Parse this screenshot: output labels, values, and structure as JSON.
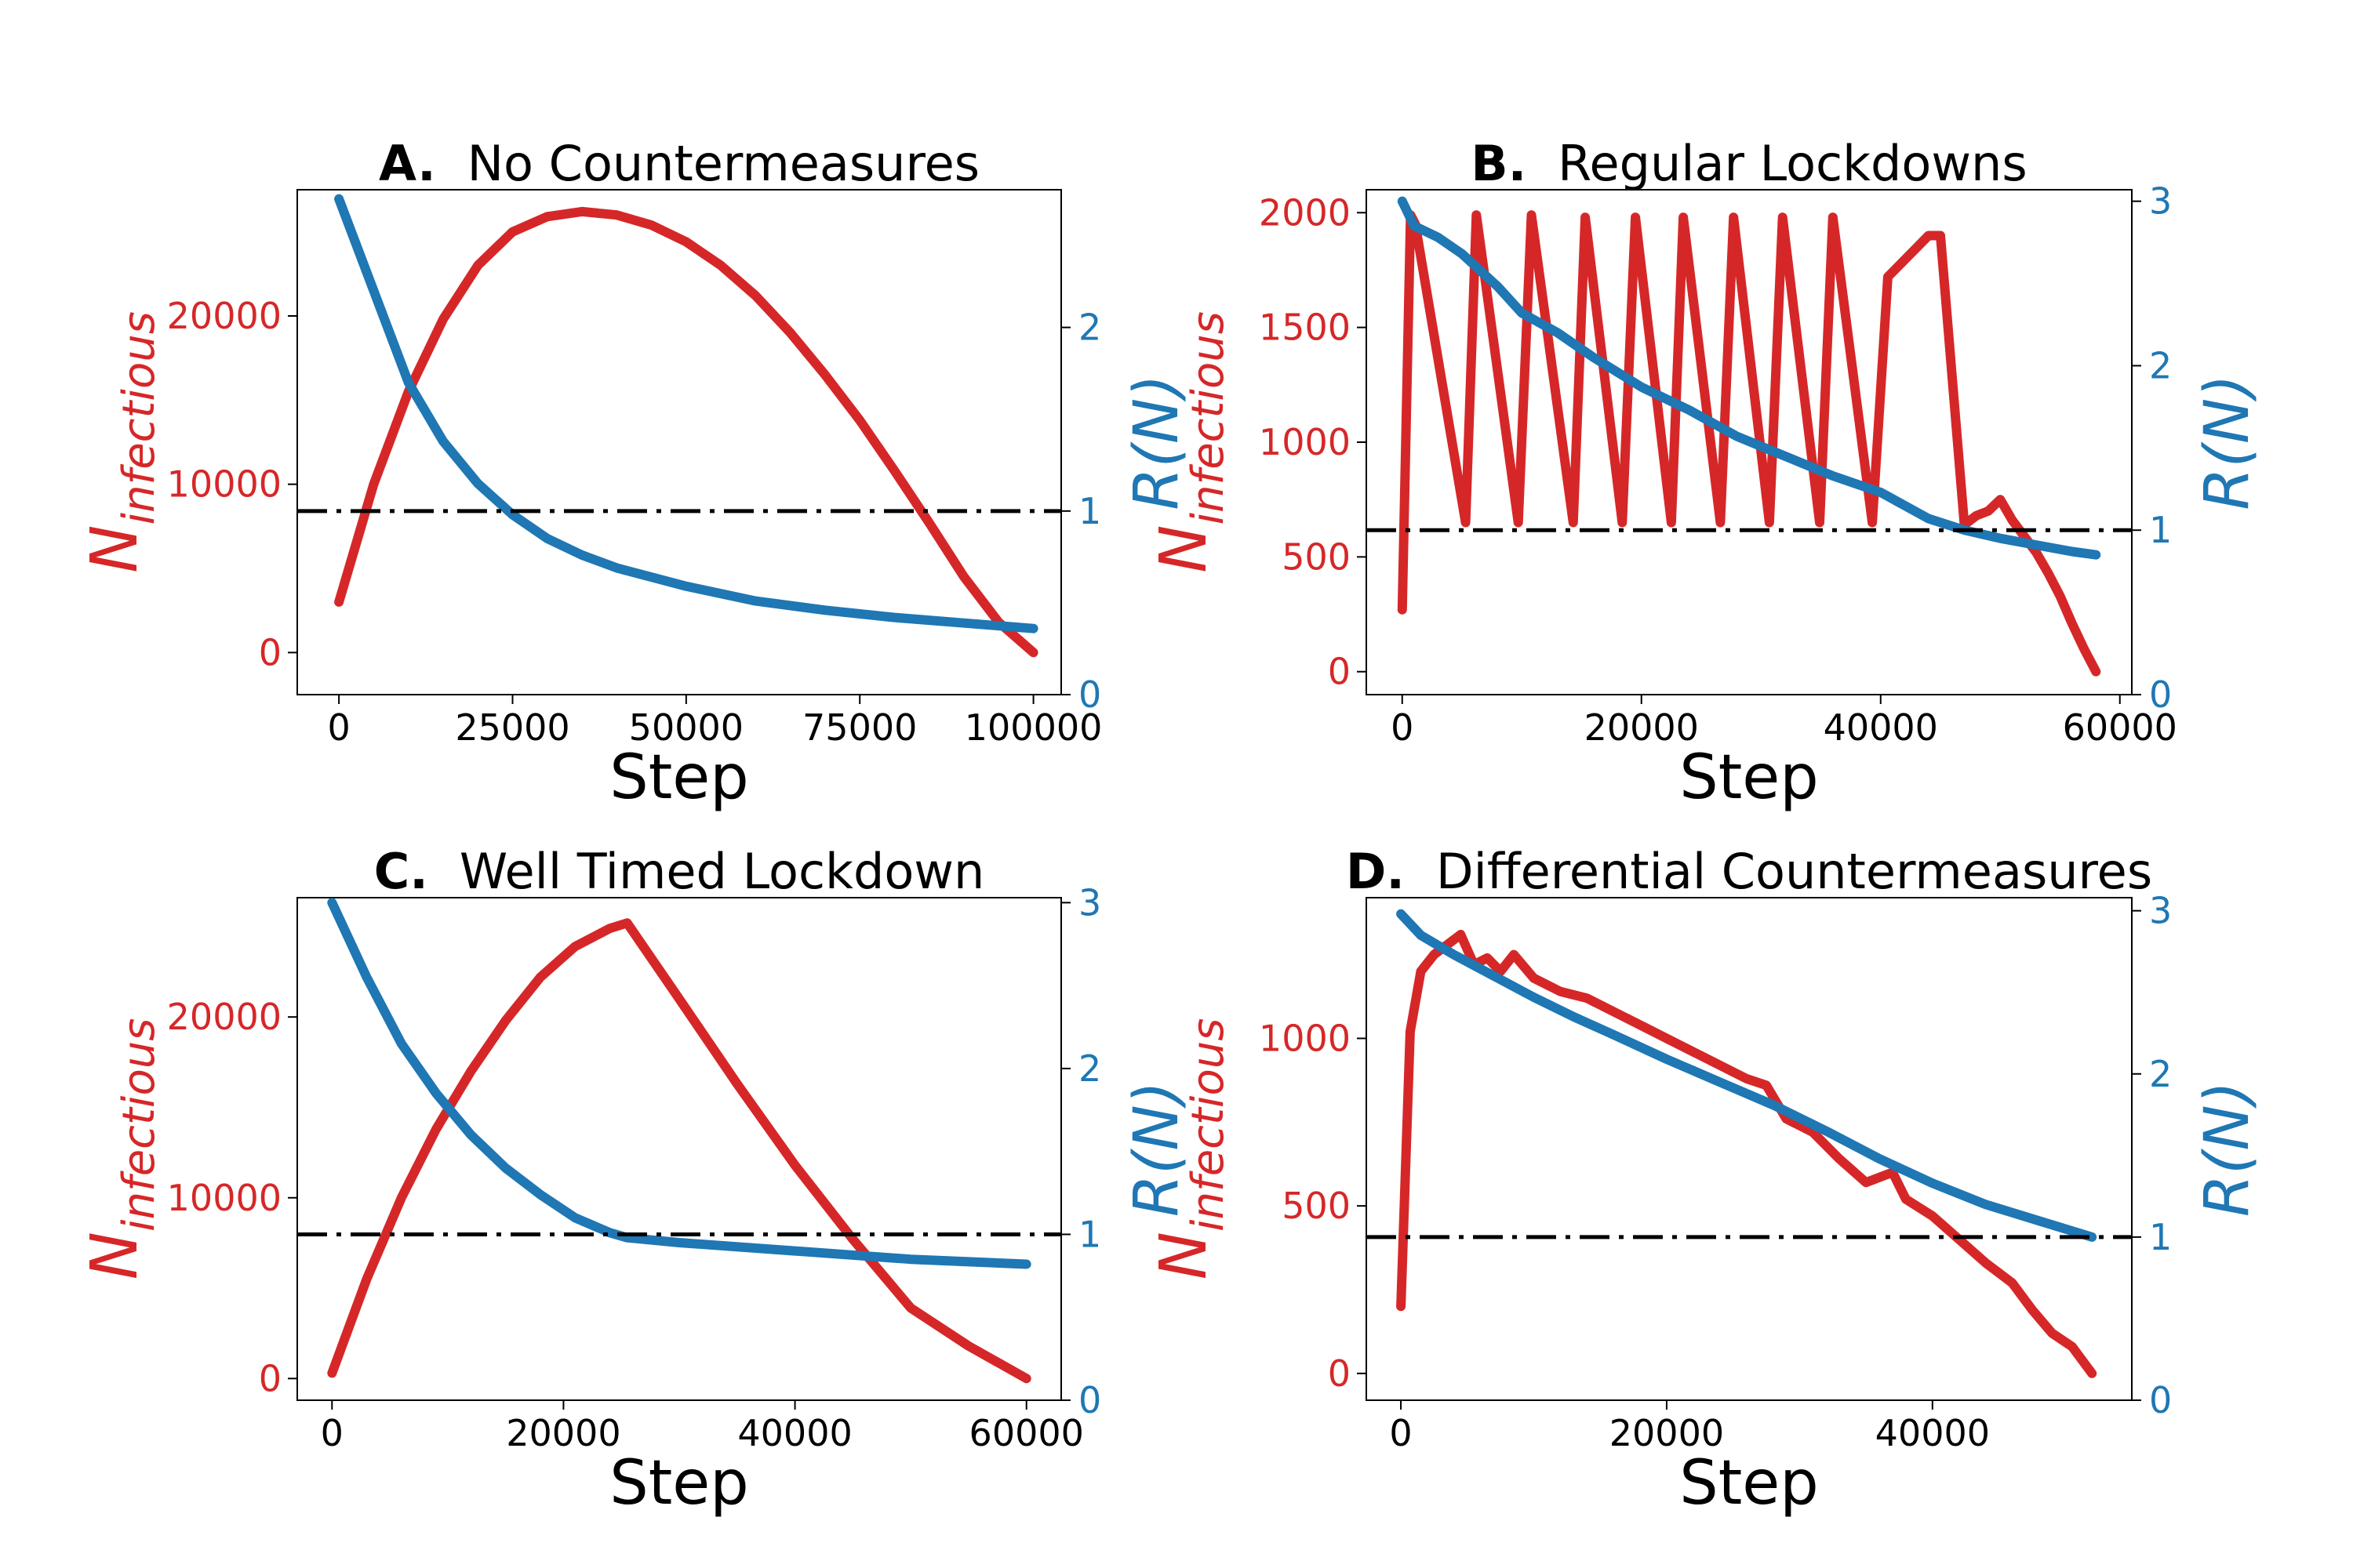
{
  "colors": {
    "infectious": "#d62728",
    "r": "#1f77b4",
    "threshold": "#000000",
    "axis": "#000000"
  },
  "chart_data": [
    {
      "type": "line",
      "panel": "A.",
      "title": "No Countermeasures",
      "xlabel": "Step",
      "ylabel_left": {
        "base": "N",
        "sub": "infectious"
      },
      "ylabel_right": "R(N)",
      "xlim": [
        -6000,
        104000
      ],
      "ylim_left": [
        -2500,
        27500
      ],
      "ylim_right": [
        0,
        2.75
      ],
      "xticks": [
        0,
        25000,
        50000,
        75000,
        100000
      ],
      "yticks_left": [
        0,
        10000,
        20000
      ],
      "yticks_right": [
        0,
        1,
        2
      ],
      "threshold_r": 1,
      "series": [
        {
          "name": "N_infectious",
          "axis": "left",
          "color": "infectious",
          "x": [
            0,
            5000,
            10000,
            15000,
            20000,
            25000,
            30000,
            35000,
            40000,
            45000,
            50000,
            55000,
            60000,
            65000,
            70000,
            75000,
            80000,
            85000,
            90000,
            95000,
            100000
          ],
          "y": [
            3000,
            10000,
            15500,
            19800,
            23000,
            25000,
            25900,
            26200,
            26000,
            25400,
            24400,
            23000,
            21200,
            19000,
            16500,
            13800,
            10800,
            7700,
            4500,
            1800,
            0
          ]
        },
        {
          "name": "R(N)",
          "axis": "right",
          "color": "r",
          "x": [
            0,
            5000,
            10000,
            15000,
            20000,
            25000,
            30000,
            35000,
            40000,
            50000,
            60000,
            70000,
            80000,
            90000,
            100000
          ],
          "y": [
            2.7,
            2.2,
            1.7,
            1.38,
            1.15,
            0.98,
            0.85,
            0.76,
            0.69,
            0.59,
            0.51,
            0.46,
            0.42,
            0.39,
            0.36
          ]
        }
      ]
    },
    {
      "type": "line",
      "panel": "B.",
      "title": "Regular Lockdowns",
      "xlabel": "Step",
      "ylabel_left": {
        "base": "N",
        "sub": "infectious"
      },
      "ylabel_right": "R(N)",
      "xlim": [
        -3000,
        61000
      ],
      "ylim_left": [
        -100,
        2100
      ],
      "ylim_right": [
        0,
        3.07
      ],
      "xticks": [
        0,
        20000,
        40000,
        60000
      ],
      "yticks_left": [
        0,
        500,
        1000,
        1500,
        2000
      ],
      "yticks_right": [
        0,
        1,
        2,
        3
      ],
      "threshold_r": 1,
      "series": [
        {
          "name": "N_infectious",
          "axis": "left",
          "color": "infectious",
          "x": [
            0,
            700,
            1100,
            5300,
            6200,
            9700,
            10800,
            14300,
            15300,
            18400,
            19500,
            22500,
            23500,
            26600,
            27700,
            30700,
            31800,
            34900,
            36000,
            39300,
            40600,
            44000,
            45000,
            47000,
            48000,
            49000,
            50000,
            51000,
            52000,
            53000,
            54000,
            55000,
            56000,
            57000,
            58000
          ],
          "y": [
            270,
            1990,
            1950,
            650,
            1990,
            650,
            1990,
            650,
            1980,
            650,
            1980,
            650,
            1980,
            650,
            1980,
            650,
            1980,
            650,
            1980,
            650,
            1720,
            1900,
            1900,
            640,
            680,
            700,
            750,
            660,
            590,
            520,
            430,
            330,
            210,
            100,
            0
          ]
        },
        {
          "name": "R(N)",
          "axis": "right",
          "color": "r",
          "x": [
            0,
            1000,
            3000,
            5000,
            8000,
            10000,
            13000,
            16000,
            20000,
            24000,
            28000,
            32000,
            36000,
            40000,
            44000,
            47000,
            50000,
            53000,
            56000,
            58000
          ],
          "y": [
            3.0,
            2.85,
            2.78,
            2.68,
            2.48,
            2.32,
            2.2,
            2.05,
            1.87,
            1.73,
            1.57,
            1.45,
            1.33,
            1.23,
            1.07,
            1.0,
            0.95,
            0.91,
            0.87,
            0.85
          ]
        }
      ]
    },
    {
      "type": "line",
      "panel": "C.",
      "title": "Well Timed Lockdown",
      "xlabel": "Step",
      "ylabel_left": {
        "base": "N",
        "sub": "infectious"
      },
      "ylabel_right": "R(N)",
      "xlim": [
        -3000,
        63000
      ],
      "ylim_left": [
        -1200,
        26600
      ],
      "ylim_right": [
        0,
        3.03
      ],
      "xticks": [
        0,
        20000,
        40000,
        60000
      ],
      "yticks_left": [
        0,
        10000,
        20000
      ],
      "yticks_right": [
        0,
        1,
        2,
        3
      ],
      "threshold_r": 1,
      "series": [
        {
          "name": "N_infectious",
          "axis": "left",
          "color": "infectious",
          "x": [
            0,
            3000,
            6000,
            9000,
            12000,
            15000,
            18000,
            21000,
            24000,
            25500,
            30000,
            35000,
            40000,
            45000,
            50000,
            55000,
            60000
          ],
          "y": [
            300,
            5500,
            10000,
            13800,
            17000,
            19800,
            22200,
            23900,
            24900,
            25200,
            21000,
            16300,
            11800,
            7700,
            3900,
            1800,
            0
          ]
        },
        {
          "name": "R(N)",
          "axis": "right",
          "color": "r",
          "x": [
            0,
            3000,
            6000,
            9000,
            12000,
            15000,
            18000,
            21000,
            24000,
            25500,
            30000,
            40000,
            50000,
            60000
          ],
          "y": [
            3.0,
            2.55,
            2.15,
            1.85,
            1.6,
            1.4,
            1.24,
            1.1,
            1.01,
            0.98,
            0.95,
            0.9,
            0.85,
            0.82
          ]
        }
      ]
    },
    {
      "type": "line",
      "panel": "D.",
      "title": "Differential Countermeasures",
      "xlabel": "Step",
      "ylabel_left": {
        "base": "N",
        "sub": "infectious"
      },
      "ylabel_right": "R(N)",
      "xlim": [
        -2600,
        55000
      ],
      "ylim_left": [
        -80,
        1420
      ],
      "ylim_right": [
        0,
        3.08
      ],
      "xticks": [
        0,
        20000,
        40000
      ],
      "yticks_left": [
        0,
        500,
        1000
      ],
      "yticks_right": [
        0,
        1,
        2,
        3
      ],
      "threshold_r": 1,
      "series": [
        {
          "name": "N_infectious",
          "axis": "left",
          "color": "infectious",
          "x": [
            0,
            700,
            1500,
            2500,
            3500,
            4500,
            5500,
            6500,
            7500,
            8500,
            10000,
            12000,
            14000,
            16000,
            18000,
            20000,
            22000,
            24000,
            26000,
            27500,
            29000,
            31000,
            33000,
            35000,
            37000,
            38000,
            40000,
            42000,
            44000,
            46000,
            47500,
            49000,
            50500,
            52000
          ],
          "y": [
            200,
            1020,
            1200,
            1250,
            1280,
            1310,
            1220,
            1240,
            1200,
            1250,
            1180,
            1140,
            1120,
            1080,
            1040,
            1000,
            960,
            920,
            880,
            860,
            760,
            720,
            640,
            570,
            600,
            520,
            470,
            400,
            330,
            270,
            190,
            120,
            80,
            0
          ]
        },
        {
          "name": "R(N)",
          "axis": "right",
          "color": "r",
          "x": [
            0,
            1500,
            4000,
            7000,
            10000,
            13000,
            16000,
            20000,
            24000,
            28000,
            32000,
            36000,
            40000,
            44000,
            48000,
            52000
          ],
          "y": [
            2.98,
            2.85,
            2.73,
            2.6,
            2.47,
            2.35,
            2.24,
            2.09,
            1.95,
            1.81,
            1.65,
            1.48,
            1.33,
            1.2,
            1.1,
            1.0
          ]
        }
      ]
    }
  ]
}
